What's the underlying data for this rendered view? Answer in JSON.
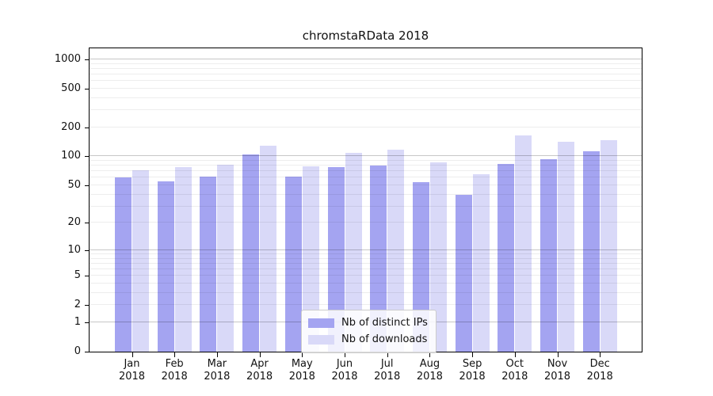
{
  "chart_data": {
    "type": "bar",
    "title": "chromstaRData 2018",
    "year_label": "2018",
    "categories": [
      "Jan",
      "Feb",
      "Mar",
      "Apr",
      "May",
      "Jun",
      "Jul",
      "Aug",
      "Sep",
      "Oct",
      "Nov",
      "Dec"
    ],
    "series": [
      {
        "name": "Nb of distinct IPs",
        "color": "#a4a4f1",
        "values": [
          60,
          55,
          62,
          104,
          62,
          77,
          80,
          54,
          40,
          83,
          94,
          112
        ]
      },
      {
        "name": "Nb of downloads",
        "color": "#d9d9f8",
        "values": [
          72,
          77,
          82,
          128,
          79,
          109,
          118,
          86,
          65,
          165,
          141,
          146
        ]
      }
    ],
    "xlabel": "",
    "ylabel": "",
    "yscale": "log1p",
    "ylim": [
      0,
      1330
    ],
    "yticks": [
      1000,
      500,
      200,
      100,
      50,
      20,
      10,
      5,
      2,
      1,
      0
    ],
    "grid": {
      "minor": [
        2,
        3,
        4,
        5,
        6,
        7,
        8,
        9,
        20,
        30,
        40,
        50,
        60,
        70,
        80,
        90,
        200,
        300,
        400,
        500,
        600,
        700,
        800,
        900
      ],
      "major": [
        1,
        10,
        100,
        1000
      ]
    },
    "grid_on": true,
    "legend_position": "bottom-center"
  },
  "colors": {
    "axis": "#000000",
    "background": "#ffffff",
    "bar_ips": "#a4a4f1",
    "bar_downloads": "#d9d9f8"
  }
}
